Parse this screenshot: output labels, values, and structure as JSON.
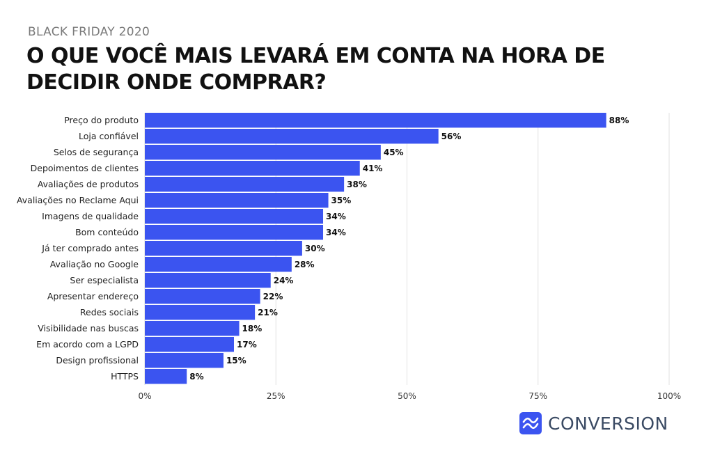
{
  "header": {
    "kicker": "BLACK FRIDAY 2020",
    "title_line1": "O QUE VOCÊ MAIS LEVARÁ EM CONTA NA HORA DE",
    "title_line2": "DECIDIR ONDE COMPRAR?"
  },
  "brand": {
    "name": "CONVERSION",
    "icon": "trend-wave-icon",
    "color": "#3b54f0"
  },
  "chart_data": {
    "type": "bar",
    "orientation": "horizontal",
    "categories": [
      "Preço do produto",
      "Loja confiável",
      "Selos de segurança",
      "Depoimentos de clientes",
      "Avaliações de produtos",
      "Avaliações no Reclame Aqui",
      "Imagens de qualidade",
      "Bom conteúdo",
      "Já ter comprado antes",
      "Avaliação no Google",
      "Ser especialista",
      "Apresentar endereço",
      "Redes sociais",
      "Visibilidade nas buscas",
      "Em acordo com a LGPD",
      "Design profissional",
      "HTTPS"
    ],
    "values": [
      88,
      56,
      45,
      41,
      38,
      35,
      34,
      34,
      30,
      28,
      24,
      22,
      21,
      18,
      17,
      15,
      8
    ],
    "value_labels": [
      "88%",
      "56%",
      "45%",
      "41%",
      "38%",
      "35%",
      "34%",
      "34%",
      "30%",
      "28%",
      "24%",
      "22%",
      "21%",
      "18%",
      "17%",
      "15%",
      "8%"
    ],
    "xlim": [
      0,
      100
    ],
    "xticks": [
      0,
      25,
      50,
      75,
      100
    ],
    "xtick_labels": [
      "0%",
      "25%",
      "50%",
      "75%",
      "100%"
    ],
    "grid": true,
    "bar_color": "#3b54f0",
    "grid_color": "#e2e2e2"
  }
}
